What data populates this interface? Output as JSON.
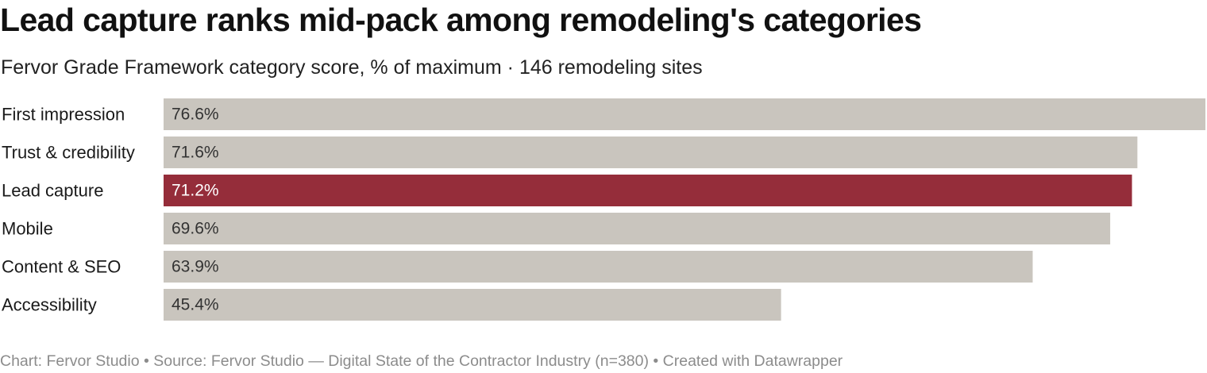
{
  "title": "Lead capture ranks mid-pack among remodeling's categories",
  "subtitle": "Fervor Grade Framework category score, % of maximum · 146 remodeling sites",
  "footer": "Chart: Fervor Studio • Source: Fervor Studio — Digital State of the Contractor Industry (n=380) • Created with Datawrapper",
  "chart_data": {
    "type": "bar",
    "orientation": "horizontal",
    "categories": [
      "First impression",
      "Trust & credibility",
      "Lead capture",
      "Mobile",
      "Content & SEO",
      "Accessibility"
    ],
    "values": [
      76.6,
      71.6,
      71.2,
      69.6,
      63.9,
      45.4
    ],
    "value_labels": [
      "76.6%",
      "71.6%",
      "71.2%",
      "69.6%",
      "63.9%",
      "45.4%"
    ],
    "highlight": "Lead capture",
    "colors": {
      "default": "#c9c5be",
      "highlight": "#952d3a"
    },
    "xlim": [
      0,
      76.6
    ],
    "grid": false,
    "legend": "none"
  }
}
